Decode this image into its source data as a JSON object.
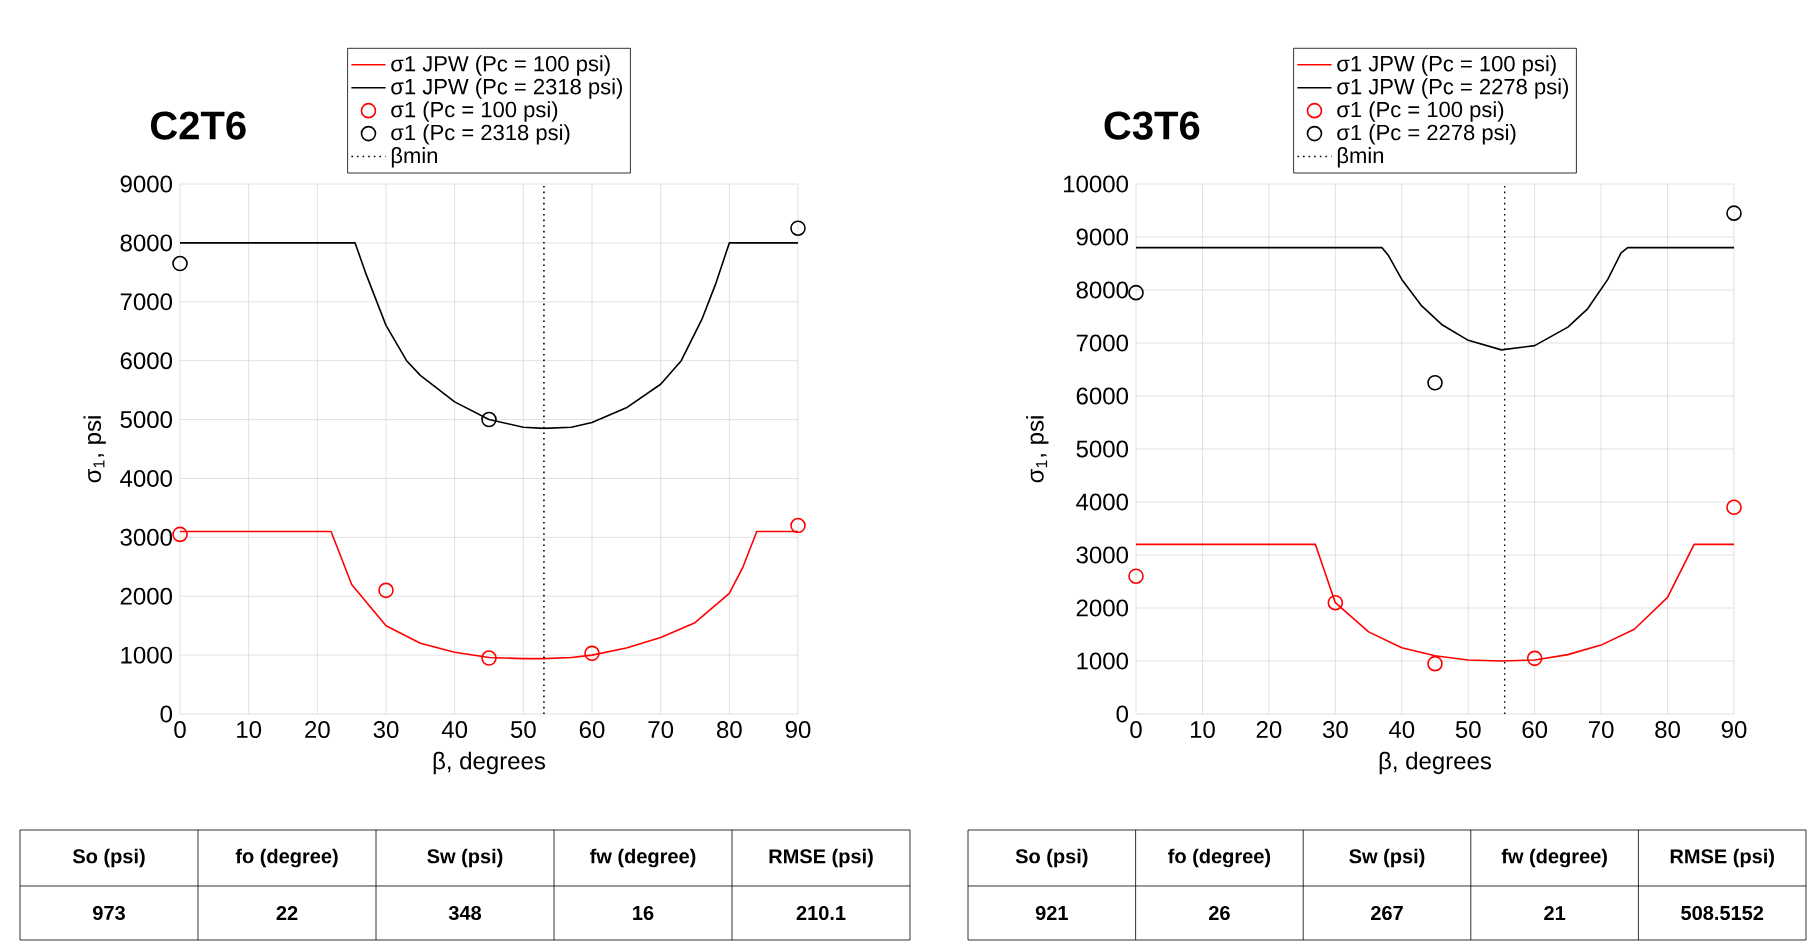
{
  "chart_data": [
    {
      "type": "line",
      "title": "C2T6",
      "xlabel": "β, degrees",
      "ylabel": "σ$_{1}$, psi",
      "xlim": [
        0,
        90
      ],
      "ylim": [
        0,
        9000
      ],
      "xticks": [
        0,
        10,
        20,
        30,
        40,
        50,
        60,
        70,
        80,
        90
      ],
      "yticks": [
        0,
        1000,
        2000,
        3000,
        4000,
        5000,
        6000,
        7000,
        8000,
        9000
      ],
      "grid": true,
      "legend": "top",
      "series": [
        {
          "name": "σ1 JPW (Pc = 100 psi)",
          "marker": "none",
          "color": "#ff0000",
          "x": [
            0,
            22,
            25,
            30,
            35,
            40,
            45,
            50,
            53,
            57,
            60,
            65,
            70,
            75,
            80,
            82,
            84,
            90
          ],
          "values": [
            3100,
            3100,
            2200,
            1500,
            1200,
            1050,
            960,
            940,
            940,
            960,
            1000,
            1120,
            1300,
            1550,
            2050,
            2500,
            3100,
            3100
          ]
        },
        {
          "name": "σ1 JPW (Pc = 2318 psi)",
          "marker": "none",
          "color": "#000000",
          "x": [
            0,
            25.5,
            27,
            30,
            33,
            35,
            40,
            45,
            50,
            53,
            57,
            60,
            65,
            70,
            73,
            76,
            78,
            80,
            90
          ],
          "values": [
            8000,
            8000,
            7500,
            6600,
            6000,
            5750,
            5300,
            5000,
            4870,
            4850,
            4870,
            4950,
            5200,
            5600,
            6000,
            6700,
            7300,
            8000,
            8000
          ]
        },
        {
          "name": "σ1 (Pc = 100 psi)",
          "type": "scatter",
          "marker": "circle",
          "color": "#ff0000",
          "x": [
            0,
            30,
            45,
            60,
            90
          ],
          "values": [
            3050,
            2100,
            950,
            1030,
            3200
          ]
        },
        {
          "name": "σ1 (Pc = 2318 psi)",
          "type": "scatter",
          "marker": "circle",
          "color": "#000000",
          "x": [
            0,
            45,
            90
          ],
          "values": [
            7650,
            5000,
            8250
          ]
        }
      ],
      "ref_lines": [
        {
          "axis": "x",
          "value": 53,
          "label": "βmin",
          "color": "#000000",
          "line_style": "dotted"
        }
      ],
      "annotations": [
        "So (psi)",
        "fo (degree)",
        "Sw (psi)",
        "fw (degree)",
        "RMSE (psi)",
        "973",
        "22",
        "348",
        "16",
        "210.1"
      ]
    },
    {
      "type": "line",
      "title": "C3T6",
      "xlabel": "β, degrees",
      "ylabel": "σ$_{1}$, psi",
      "xlim": [
        0,
        90
      ],
      "ylim": [
        0,
        10000
      ],
      "xticks": [
        0,
        10,
        20,
        30,
        40,
        50,
        60,
        70,
        80,
        90
      ],
      "yticks": [
        0,
        1000,
        2000,
        3000,
        4000,
        5000,
        6000,
        7000,
        8000,
        9000,
        10000
      ],
      "grid": true,
      "legend": "top",
      "series": [
        {
          "name": "σ1 JPW (Pc = 100 psi)",
          "marker": "none",
          "color": "#ff0000",
          "x": [
            0,
            27,
            30,
            35,
            40,
            45,
            50,
            55,
            60,
            65,
            70,
            75,
            80,
            82,
            84,
            90
          ],
          "values": [
            3200,
            3200,
            2100,
            1550,
            1250,
            1100,
            1020,
            1000,
            1020,
            1120,
            1300,
            1600,
            2200,
            2700,
            3200,
            3200
          ]
        },
        {
          "name": "σ1 JPW (Pc = 2278 psi)",
          "marker": "none",
          "color": "#000000",
          "x": [
            0,
            37,
            38,
            40,
            43,
            46,
            50,
            55,
            60,
            65,
            68,
            71,
            73,
            74,
            90
          ],
          "values": [
            8800,
            8800,
            8650,
            8200,
            7700,
            7350,
            7050,
            6870,
            6950,
            7300,
            7650,
            8200,
            8700,
            8800,
            8800
          ]
        },
        {
          "name": "σ1 (Pc = 100 psi)",
          "type": "scatter",
          "marker": "circle",
          "color": "#ff0000",
          "x": [
            0,
            30,
            45,
            60,
            90
          ],
          "values": [
            2600,
            2100,
            950,
            1050,
            3900
          ]
        },
        {
          "name": "σ1 (Pc = 2278 psi)",
          "type": "scatter",
          "marker": "circle",
          "color": "#000000",
          "x": [
            0,
            45,
            90
          ],
          "values": [
            7950,
            6250,
            9450
          ]
        }
      ],
      "ref_lines": [
        {
          "axis": "x",
          "value": 55.5,
          "label": "βmin",
          "color": "#000000",
          "line_style": "dotted"
        }
      ],
      "annotations": [
        "So (psi)",
        "fo (degree)",
        "Sw (psi)",
        "fw (degree)",
        "RMSE (psi)",
        "921",
        "26",
        "267",
        "21",
        "508.5152"
      ]
    }
  ]
}
